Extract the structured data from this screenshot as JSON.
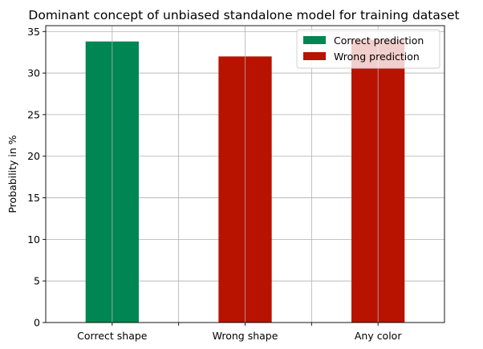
{
  "chart_data": {
    "type": "bar",
    "title": "Dominant concept of unbiased standalone model for training dataset",
    "xlabel": "",
    "ylabel": "Probability in %",
    "categories": [
      "Correct shape",
      "Wrong shape",
      "Any color"
    ],
    "values": [
      33.8,
      32.0,
      34.0
    ],
    "bar_series": [
      "Correct prediction",
      "Wrong prediction",
      "Wrong prediction"
    ],
    "ylim": [
      0,
      35.7
    ],
    "yticks": [
      0,
      5,
      10,
      15,
      20,
      25,
      30,
      35
    ],
    "grid": true,
    "legend_position": "top-right",
    "legend": [
      {
        "name": "Correct prediction",
        "color": "#008652"
      },
      {
        "name": "Wrong prediction",
        "color": "#b81201"
      }
    ]
  }
}
